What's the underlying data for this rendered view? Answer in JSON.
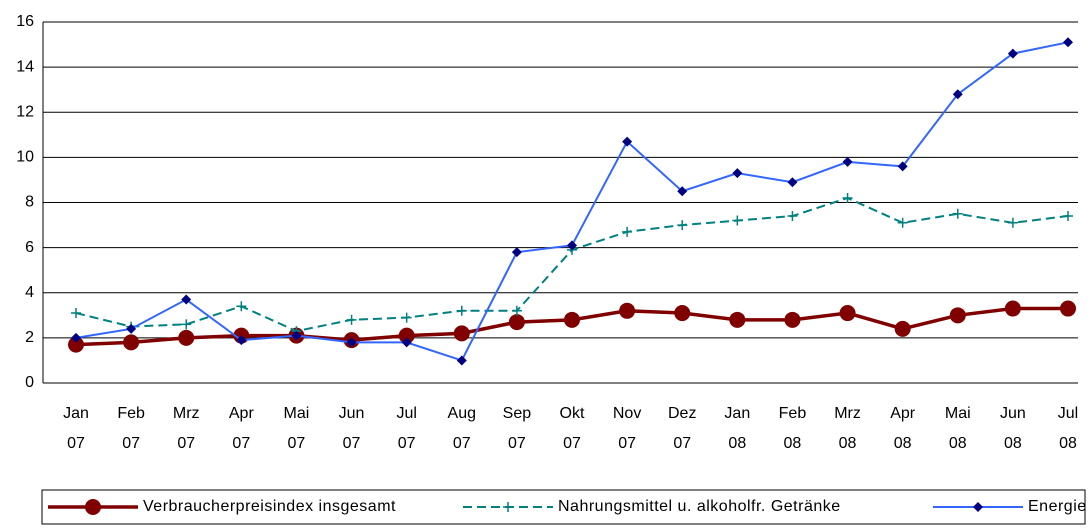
{
  "chart_data": {
    "type": "line",
    "categories": [
      "Jan 07",
      "Feb 07",
      "Mrz 07",
      "Apr 07",
      "Mai 07",
      "Jun 07",
      "Jul 07",
      "Aug 07",
      "Sep 07",
      "Okt 07",
      "Nov 07",
      "Dez 07",
      "Jan 08",
      "Feb 08",
      "Mrz 08",
      "Apr 08",
      "Mai 08",
      "Jun 08",
      "Jul 08"
    ],
    "series": [
      {
        "name": "Verbraucherpreisindex insgesamt",
        "color": "#800000",
        "marker_color": "#800000",
        "marker": "circle",
        "dash": false,
        "values": [
          1.7,
          1.8,
          2.0,
          2.1,
          2.1,
          1.9,
          2.1,
          2.2,
          2.7,
          2.8,
          3.2,
          3.1,
          2.8,
          2.8,
          3.1,
          2.4,
          3.0,
          3.3,
          3.3
        ]
      },
      {
        "name": "Nahrungsmittel u. alkoholfr. Getränke",
        "color": "#008080",
        "marker_color": "#008080",
        "marker": "plus",
        "dash": true,
        "values": [
          3.1,
          2.5,
          2.6,
          3.4,
          2.3,
          2.8,
          2.9,
          3.2,
          3.2,
          5.9,
          6.7,
          7.0,
          7.2,
          7.4,
          8.2,
          7.1,
          7.5,
          7.1,
          7.4
        ]
      },
      {
        "name": "Energie",
        "color": "#3366ff",
        "marker_color": "#000080",
        "marker": "diamond",
        "dash": false,
        "values": [
          2.0,
          2.4,
          3.7,
          1.9,
          2.1,
          1.8,
          1.8,
          1.0,
          5.8,
          6.1,
          10.7,
          8.5,
          9.3,
          8.9,
          9.8,
          9.6,
          12.8,
          14.6,
          15.1
        ]
      }
    ],
    "ylim": [
      0,
      16
    ],
    "yticks": [
      0,
      2,
      4,
      6,
      8,
      10,
      12,
      14,
      16
    ],
    "grid": true,
    "legend": "bottom"
  }
}
